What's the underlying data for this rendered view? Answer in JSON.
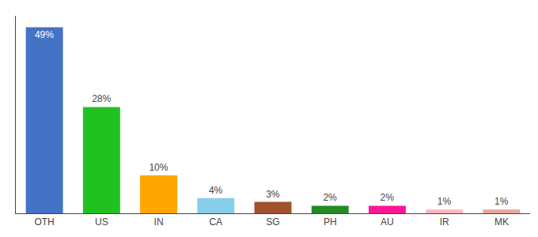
{
  "chart_data": {
    "type": "bar",
    "categories": [
      "OTH",
      "US",
      "IN",
      "CA",
      "SG",
      "PH",
      "AU",
      "IR",
      "MK"
    ],
    "values": [
      49,
      28,
      10,
      4,
      3,
      2,
      2,
      1,
      1
    ],
    "value_labels": [
      "49%",
      "28%",
      "10%",
      "4%",
      "3%",
      "2%",
      "2%",
      "1%",
      "1%"
    ],
    "colors": [
      "#4472C4",
      "#22C122",
      "#FFA500",
      "#87CEEB",
      "#A0522D",
      "#228B22",
      "#FF1493",
      "#FFB6C1",
      "#E8A898"
    ],
    "ylim": [
      0,
      52
    ],
    "data_labels": true,
    "tick_labels": "x",
    "grid": false
  }
}
